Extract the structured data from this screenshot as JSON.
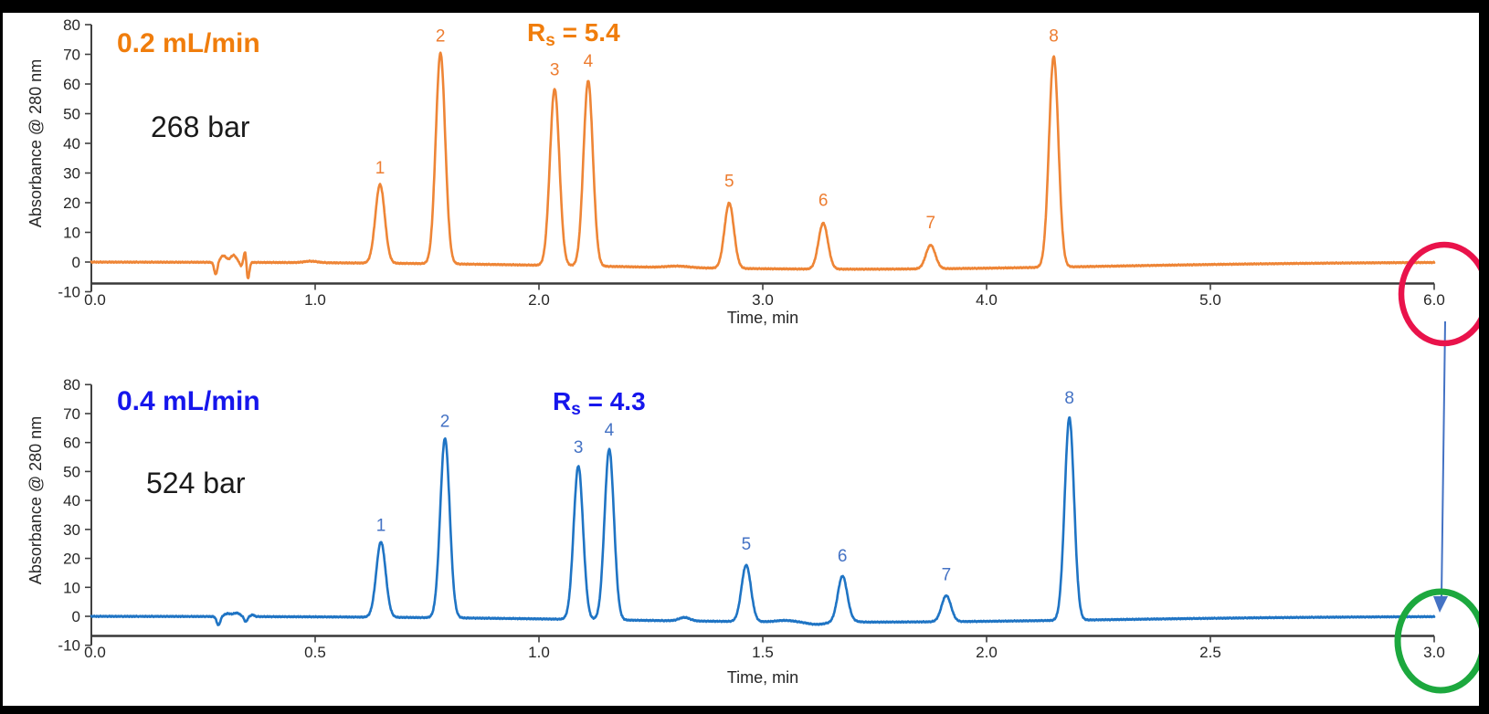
{
  "figure": {
    "background": "#ffffff",
    "frame_color": "#000000",
    "axis_color": "#404040",
    "tick_text_color": "#262626"
  },
  "annotations": {
    "top_circle_color": "#e9134b",
    "bottom_circle_color": "#1ca83e",
    "arrow_color": "#4472c4"
  },
  "chart_data": [
    {
      "type": "line",
      "title": "0.2 mL/min",
      "title_color": "#f07d0c",
      "pressure": "268 bar",
      "pressure_color": "#1a1a1a",
      "resolution_prefix": "R",
      "resolution_sub": "s",
      "resolution_rest": " = 5.4",
      "xlabel": "Time, min",
      "ylabel": "Absorbance @ 280 nm",
      "xlim": [
        0.0,
        6.0
      ],
      "ylim": [
        -10,
        80
      ],
      "x_tick_values": [
        0,
        1,
        2,
        3,
        4,
        5,
        6
      ],
      "x_tick_labels": [
        "0.0",
        "1.0",
        "2.0",
        "3.0",
        "4.0",
        "5.0",
        "6.0"
      ],
      "y_tick_values": [
        80,
        70,
        60,
        50,
        40,
        30,
        20,
        10,
        0,
        -10
      ],
      "y_tick_labels": [
        "80",
        "70",
        "60",
        "50",
        "40",
        "30",
        "20",
        "10",
        "0",
        "-10"
      ],
      "trace_color": "#ee8536",
      "peak_label_color": "#ed7d31",
      "peak_sigma_min": 0.021,
      "peaks": [
        {
          "label": "1",
          "time_min": 1.29,
          "height_mau": 26.5
        },
        {
          "label": "2",
          "time_min": 1.56,
          "height_mau": 71.0
        },
        {
          "label": "3",
          "time_min": 2.07,
          "height_mau": 59.5
        },
        {
          "label": "4",
          "time_min": 2.22,
          "height_mau": 62.5
        },
        {
          "label": "5",
          "time_min": 2.85,
          "height_mau": 22.0
        },
        {
          "label": "6",
          "time_min": 3.27,
          "height_mau": 15.5
        },
        {
          "label": "7",
          "time_min": 3.75,
          "height_mau": 8.0
        },
        {
          "label": "8",
          "time_min": 4.3,
          "height_mau": 71.0
        }
      ],
      "baseline_features": [
        [
          0.556,
          -4.2,
          0.007
        ],
        [
          0.59,
          2.2,
          0.014
        ],
        [
          0.635,
          2.4,
          0.013
        ],
        [
          0.668,
          -1.2,
          0.005
        ],
        [
          0.687,
          4.0,
          0.005
        ],
        [
          0.7,
          -5.5,
          0.006
        ],
        [
          0.98,
          0.5,
          0.03
        ],
        [
          2.62,
          0.5,
          0.05
        ],
        [
          3.4,
          -2.4,
          1.1
        ]
      ]
    },
    {
      "type": "line",
      "title": "0.4 mL/min",
      "title_color": "#1616ec",
      "pressure": "524 bar",
      "pressure_color": "#1a1a1a",
      "resolution_prefix": "R",
      "resolution_sub": "s",
      "resolution_rest": " = 4.3",
      "xlabel": "Time, min",
      "ylabel": "Absorbance @ 280 nm",
      "xlim": [
        0.0,
        3.0
      ],
      "ylim": [
        -10,
        80
      ],
      "x_tick_values": [
        0,
        0.5,
        1,
        1.5,
        2,
        2.5,
        3
      ],
      "x_tick_labels": [
        "0.0",
        "0.5",
        "1.0",
        "1.5",
        "2.0",
        "2.5",
        "3.0"
      ],
      "y_tick_values": [
        80,
        70,
        60,
        50,
        40,
        30,
        20,
        10,
        0,
        -10
      ],
      "y_tick_labels": [
        "80",
        "70",
        "60",
        "50",
        "40",
        "30",
        "20",
        "10",
        "0",
        "-10"
      ],
      "trace_color": "#1f74c4",
      "peak_label_color": "#4472c4",
      "peak_sigma_min": 0.0105,
      "peaks": [
        {
          "label": "1",
          "time_min": 0.647,
          "height_mau": 26.0
        },
        {
          "label": "2",
          "time_min": 0.79,
          "height_mau": 62.0
        },
        {
          "label": "3",
          "time_min": 1.088,
          "height_mau": 53.0
        },
        {
          "label": "4",
          "time_min": 1.157,
          "height_mau": 59.0
        },
        {
          "label": "5",
          "time_min": 1.463,
          "height_mau": 19.5
        },
        {
          "label": "6",
          "time_min": 1.678,
          "height_mau": 15.5
        },
        {
          "label": "7",
          "time_min": 1.91,
          "height_mau": 9.0
        },
        {
          "label": "8",
          "time_min": 2.185,
          "height_mau": 70.0
        }
      ],
      "baseline_features": [
        [
          0.284,
          -3.0,
          0.004
        ],
        [
          0.305,
          1.0,
          0.008
        ],
        [
          0.325,
          1.2,
          0.007
        ],
        [
          0.345,
          -1.8,
          0.0035
        ],
        [
          0.36,
          0.6,
          0.004
        ],
        [
          1.325,
          1.2,
          0.012
        ],
        [
          1.55,
          0.5,
          0.02
        ],
        [
          1.62,
          -0.8,
          0.02
        ],
        [
          1.69,
          0.6,
          0.015
        ],
        [
          1.7,
          -2.0,
          0.55
        ]
      ]
    }
  ]
}
